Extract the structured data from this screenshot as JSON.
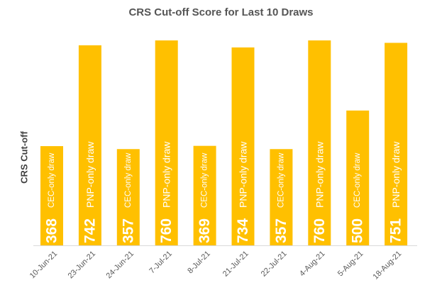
{
  "chart_data": {
    "type": "bar",
    "title": "CRS Cut-off Score for Last 10 Draws",
    "xlabel": "",
    "ylabel": "CRS Cut-off",
    "categories": [
      "10-Jun-21",
      "23-Jun-21",
      "24-Jun-21",
      "7-Jul-21",
      "8-Jul-21",
      "21-Jul-21",
      "22-Jul-21",
      "4-Aug-21",
      "5-Aug-21",
      "18-Aug-21"
    ],
    "values": [
      368,
      742,
      357,
      760,
      369,
      734,
      357,
      760,
      500,
      751
    ],
    "annotations": [
      "CEC-only draw",
      "PNP-only draw",
      "CEC-only draw",
      "PNP-only draw",
      "CEC-only draw",
      "PNP-only draw",
      "CEC-only draw",
      "PNP-only draw",
      "CEC-only draw",
      "PNP-only draw"
    ],
    "ylim": [
      0,
      760
    ],
    "grid": false,
    "legend": "none",
    "bar_color": "#FFC000"
  }
}
